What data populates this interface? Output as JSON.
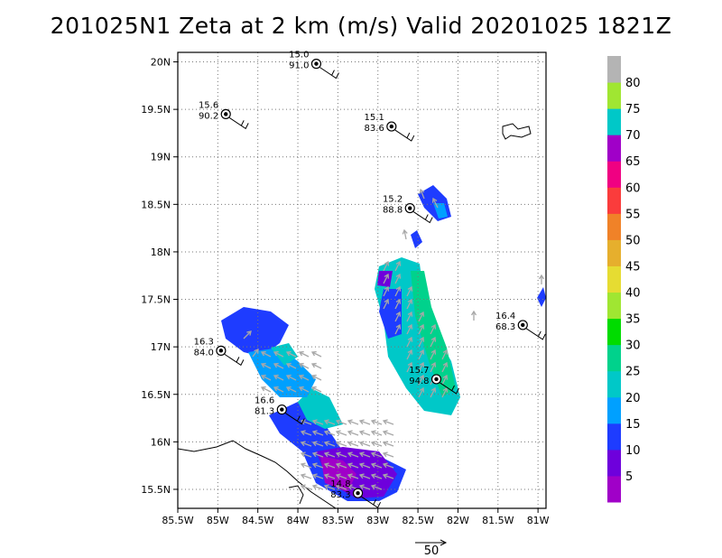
{
  "title": "201025N1 Zeta at 2 km (m/s) Valid 20201025 1821Z",
  "chart_data": {
    "type": "map",
    "xlim": [
      -85.5,
      -80.9
    ],
    "ylim": [
      15.3,
      20.1
    ],
    "x_ticks": [
      -85.5,
      -85,
      -84.5,
      -84,
      -83.5,
      -83,
      -82.5,
      -82,
      -81.5,
      -81
    ],
    "x_tick_labels": [
      "85.5W",
      "85W",
      "84.5W",
      "84W",
      "83.5W",
      "83W",
      "82.5W",
      "82W",
      "81.5W",
      "81W"
    ],
    "y_ticks": [
      15.5,
      16,
      16.5,
      17,
      17.5,
      18,
      18.5,
      19,
      19.5,
      20
    ],
    "y_tick_labels": [
      "15.5N",
      "16N",
      "16.5N",
      "17N",
      "17.5N",
      "18N",
      "18.5N",
      "19N",
      "19.5N",
      "20N"
    ],
    "grid": true,
    "colorbar": {
      "labels": [
        "5",
        "10",
        "15",
        "20",
        "25",
        "30",
        "35",
        "40",
        "45",
        "50",
        "55",
        "60",
        "65",
        "70",
        "75",
        "80"
      ],
      "colors": [
        "#a000c8",
        "#6e00dc",
        "#1e3cff",
        "#00a0ff",
        "#00c8c8",
        "#00d28c",
        "#00dc00",
        "#a0e632",
        "#e6dc32",
        "#e6af2d",
        "#f08228",
        "#fa3c3c",
        "#f00082",
        "#a000c8",
        "#00c8c8",
        "#a0e632",
        "#b4b4b4"
      ]
    },
    "stations": [
      {
        "lon": -83.77,
        "lat": 19.98,
        "top": "15.0",
        "bottom": "91.0"
      },
      {
        "lon": -84.9,
        "lat": 19.45,
        "top": "15.6",
        "bottom": "90.2"
      },
      {
        "lon": -82.83,
        "lat": 19.32,
        "top": "15.1",
        "bottom": "83.6"
      },
      {
        "lon": -82.6,
        "lat": 18.46,
        "top": "15.2",
        "bottom": "88.8"
      },
      {
        "lon": -81.19,
        "lat": 17.23,
        "top": "16.4",
        "bottom": "68.3"
      },
      {
        "lon": -84.96,
        "lat": 16.96,
        "top": "16.3",
        "bottom": "84.0"
      },
      {
        "lon": -82.27,
        "lat": 16.66,
        "top": "15.7",
        "bottom": "94.8"
      },
      {
        "lon": -84.2,
        "lat": 16.34,
        "top": "16.6",
        "bottom": "81.3"
      },
      {
        "lon": -83.25,
        "lat": 15.46,
        "top": "14.8",
        "bottom": "83.3"
      }
    ],
    "reference_vector": {
      "label": "50"
    }
  }
}
